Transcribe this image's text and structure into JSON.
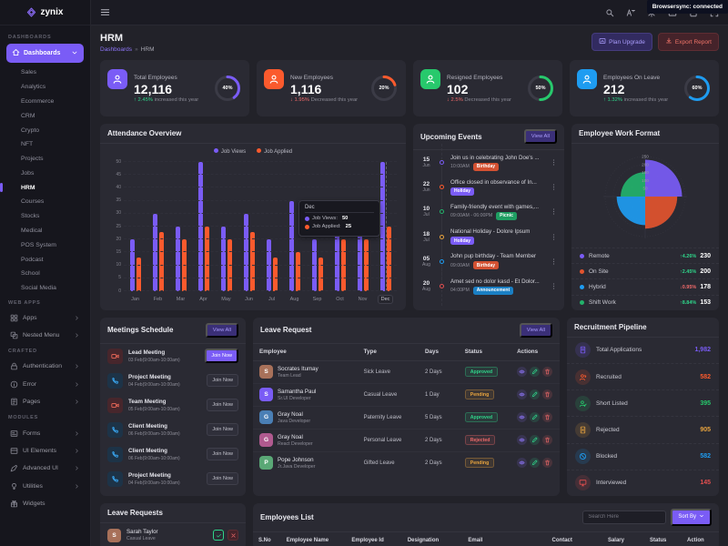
{
  "navbar": {
    "logo_text": "zynix",
    "browsersync": "Browsersync: connected",
    "icons": [
      "search",
      "translate",
      "theme-sun",
      "archive-box",
      "cart",
      "fullscreen"
    ]
  },
  "sidebar": {
    "sections": {
      "dashboards": "DASHBOARDS"
    },
    "dashboards_button": "Dashboards",
    "dashboard_items": [
      "Sales",
      "Analytics",
      "Ecommerce",
      "CRM",
      "Crypto",
      "NFT",
      "Projects",
      "Jobs",
      "HRM",
      "Courses",
      "Stocks",
      "Medical",
      "POS System",
      "Podcast",
      "School",
      "Social Media"
    ],
    "active_item": "HRM",
    "groups": [
      {
        "label": "WEB APPS",
        "items": [
          {
            "label": "Apps",
            "icon": "apps",
            "chevron": true
          },
          {
            "label": "Nested Menu",
            "icon": "nested",
            "chevron": true
          }
        ]
      },
      {
        "label": "CRAFTED",
        "items": [
          {
            "label": "Authentication",
            "icon": "lock",
            "chevron": true
          },
          {
            "label": "Error",
            "icon": "info",
            "chevron": true
          },
          {
            "label": "Pages",
            "icon": "pages",
            "chevron": true
          }
        ]
      },
      {
        "label": "MODULES",
        "items": [
          {
            "label": "Forms",
            "icon": "forms",
            "chevron": true
          },
          {
            "label": "UI Elements",
            "icon": "ui",
            "chevron": true
          },
          {
            "label": "Advanced UI",
            "icon": "pen",
            "chevron": true
          },
          {
            "label": "Utilities",
            "icon": "bulb",
            "chevron": true
          },
          {
            "label": "Widgets",
            "icon": "widgets",
            "chevron": false
          }
        ]
      }
    ]
  },
  "header": {
    "title": "HRM",
    "breadcrumb": [
      "Dashboards",
      "HRM"
    ],
    "separator": "»",
    "plan_upgrade": "Plan Upgrade",
    "export_report": "Export Report"
  },
  "stats": [
    {
      "label": "Total Employees",
      "value": "12,116",
      "delta": "2.45%",
      "direction": "up",
      "note": "increased this year",
      "percent": "40%",
      "color": "#7a5cf6"
    },
    {
      "label": "New Employees",
      "value": "1,116",
      "delta": "1.95%",
      "direction": "down",
      "note": "Decreased this year",
      "percent": "20%",
      "color": "#fb5a2d"
    },
    {
      "label": "Resigned Employees",
      "value": "102",
      "delta": "2.5%",
      "direction": "down",
      "note": "Decreased this year",
      "percent": "50%",
      "color": "#27c96c"
    },
    {
      "label": "Employees On Leave",
      "value": "212",
      "delta": "1.32%",
      "direction": "up",
      "note": "increased this year",
      "percent": "60%",
      "color": "#1e9cf1"
    }
  ],
  "chart_data": [
    {
      "type": "bar",
      "title": "Attendance Overview",
      "categories": [
        "Jan",
        "Feb",
        "Mar",
        "Apr",
        "May",
        "Jun",
        "Jul",
        "Aug",
        "Sep",
        "Oct",
        "Nov",
        "Dec"
      ],
      "series": [
        {
          "name": "Job Views",
          "color": "#7a5cf6",
          "values": [
            20,
            30,
            25,
            50,
            25,
            30,
            20,
            35,
            20,
            30,
            25,
            50
          ]
        },
        {
          "name": "Job Applied",
          "color": "#fb5a2d",
          "values": [
            13,
            23,
            20,
            25,
            20,
            23,
            13,
            15,
            13,
            20,
            20,
            25
          ]
        }
      ],
      "ylim": [
        0,
        50
      ],
      "ytick_step": 5,
      "grid": "dashed",
      "legend_position": "top",
      "tooltip": {
        "category": "Dec",
        "rows": [
          {
            "label": "Job Views:",
            "value": "50",
            "color": "#7a5cf6"
          },
          {
            "label": "Job Applied:",
            "value": "25",
            "color": "#fb5a2d"
          }
        ]
      }
    },
    {
      "type": "polar-area",
      "title": "Employee Work Format",
      "rlim": [
        0,
        250
      ],
      "rticks": [
        50,
        100,
        150,
        200,
        250
      ],
      "slices": [
        {
          "label": "Remote",
          "value": 230,
          "color": "#7a5cf6",
          "delta": "4.26%",
          "direction": "up"
        },
        {
          "label": "On Site",
          "value": 200,
          "color": "#e2542e",
          "delta": "2.45%",
          "direction": "up"
        },
        {
          "label": "Hybrid",
          "value": 178,
          "color": "#1e9cf1",
          "delta": "0.95%",
          "direction": "down"
        },
        {
          "label": "Shift Work",
          "value": 153,
          "color": "#23b26b",
          "delta": "8.84%",
          "direction": "up"
        }
      ]
    }
  ],
  "events": {
    "title": "Upcoming Events",
    "view_all": "View All",
    "items": [
      {
        "day": "15",
        "month": "Jun",
        "dot": "#7a5cf6",
        "title": "Join us in celebrating John Doe's ...",
        "time": "10:00AM",
        "badge": "Birthday",
        "badge_color": "#d35132"
      },
      {
        "day": "22",
        "month": "Jun",
        "dot": "#fb5a2d",
        "title": "Office closed in observance of In...",
        "time": "",
        "badge": "Holiday",
        "badge_color": "#7a5cf6"
      },
      {
        "day": "10",
        "month": "Jul",
        "dot": "#23b26b",
        "title": "Family-friendly event with games,...",
        "time": "09:00AM - 06:00PM",
        "badge": "Picnic",
        "badge_color": "#1f9e62"
      },
      {
        "day": "18",
        "month": "Jul",
        "dot": "#e7a33e",
        "title": "National Holiday - Dolore Ipsum",
        "time": "",
        "badge": "Holiday",
        "badge_color": "#7a5cf6"
      },
      {
        "day": "05",
        "month": "Aug",
        "dot": "#1e9cf1",
        "title": "John pup birthday - Team Member",
        "time": "09:00AM",
        "badge": "Birthday",
        "badge_color": "#d35132"
      },
      {
        "day": "20",
        "month": "Aug",
        "dot": "#e34f4f",
        "title": "Amet sed no dolor kasd - Et Dolor...",
        "time": "04:00PM",
        "badge": "Announcement",
        "badge_color": "#1a7fc4"
      }
    ]
  },
  "meetings": {
    "title": "Meetings Schedule",
    "view_all": "View All",
    "join_label": "Join Now",
    "items": [
      {
        "title": "Lead Meeting",
        "time": "03 Feb(9:00am-10:00am)",
        "icon": "video",
        "primary": true
      },
      {
        "title": "Project Meeting",
        "time": "04 Feb(9:00am-10:00am)",
        "icon": "phone",
        "primary": false
      },
      {
        "title": "Team Meeting",
        "time": "05 Feb(9:00am-10:00am)",
        "icon": "video",
        "primary": false
      },
      {
        "title": "Client Meeting",
        "time": "06 Feb(9:00am-10:00am)",
        "icon": "phone",
        "primary": false
      },
      {
        "title": "Client Meeting",
        "time": "06 Feb(9:00am-10:00am)",
        "icon": "phone",
        "primary": false
      },
      {
        "title": "Project Meeting",
        "time": "04 Feb(9:00am-10:00am)",
        "icon": "phone",
        "primary": false
      }
    ]
  },
  "leave_request": {
    "title": "Leave Request",
    "view_all": "View All",
    "columns": [
      "Employee",
      "Type",
      "Days",
      "Status",
      "Actions"
    ],
    "rows": [
      {
        "name": "Socrates Itumay",
        "role": "Team Lead",
        "type": "Sick Leave",
        "days": "2 Days",
        "status": "Approved"
      },
      {
        "name": "Samantha Paul",
        "role": "Sr.UI Developer",
        "type": "Casual Leave",
        "days": "1 Day",
        "status": "Pending"
      },
      {
        "name": "Gray Noal",
        "role": "Java Developer",
        "type": "Paternity Leave",
        "days": "5 Days",
        "status": "Approved"
      },
      {
        "name": "Gray Noal",
        "role": "React Developer",
        "type": "Personal Leave",
        "days": "2 Days",
        "status": "Rejected"
      },
      {
        "name": "Pope Johnson",
        "role": "Jr.Java Developer",
        "type": "Gifted Leave",
        "days": "2 Days",
        "status": "Pending"
      }
    ]
  },
  "pipeline": {
    "title": "Recruitment Pipeline",
    "items": [
      {
        "label": "Total Applications",
        "value": "1,982",
        "color": "#7a5cf6",
        "icon": "doc"
      },
      {
        "label": "Recruited",
        "value": "582",
        "color": "#fb5a2d",
        "icon": "pstar"
      },
      {
        "label": "Short Listed",
        "value": "395",
        "color": "#27c96c",
        "icon": "pcheck"
      },
      {
        "label": "Rejected",
        "value": "905",
        "color": "#e7a33e",
        "icon": "docx"
      },
      {
        "label": "Blocked",
        "value": "582",
        "color": "#1e9cf1",
        "icon": "slash"
      },
      {
        "label": "Interviewed",
        "value": "145",
        "color": "#e34f4f",
        "icon": "monitor"
      }
    ]
  },
  "leave_requests_mini": {
    "title": "Leave Requests",
    "rows": [
      {
        "name": "Sarah Taylor",
        "role": "Casual Leave"
      }
    ]
  },
  "employees": {
    "title": "Employees List",
    "search_placeholder": "Search Here",
    "sort_by": "Sort By",
    "columns": [
      "S.No",
      "Employee Name",
      "Employee Id",
      "Designation",
      "Email",
      "Contact",
      "Salary",
      "Status",
      "Action"
    ]
  },
  "status_colors": {
    "Approved": "#2fd58a",
    "Pending": "#e7a33e",
    "Rejected": "#f06a6a"
  }
}
